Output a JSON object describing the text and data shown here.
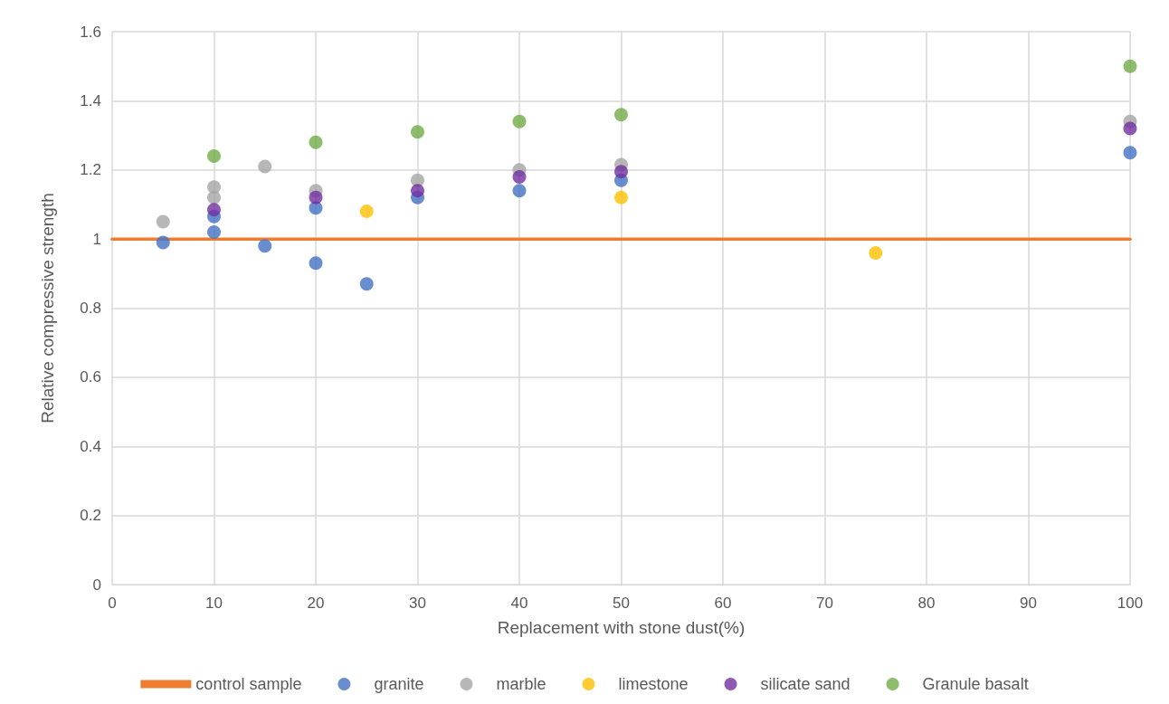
{
  "chart_data": {
    "type": "scatter",
    "xlabel": "Replacement with stone dust(%)",
    "ylabel": "Relative compressive strength",
    "xlim": [
      0,
      100
    ],
    "xticks": [
      0,
      10,
      20,
      30,
      40,
      50,
      60,
      70,
      80,
      90,
      100
    ],
    "ylim": [
      0,
      1.6
    ],
    "yticks": [
      0,
      0.2,
      0.4,
      0.6,
      0.8,
      1,
      1.2,
      1.4,
      1.6
    ],
    "grid": true,
    "legend": "bottom",
    "marker": "circle",
    "series": [
      {
        "name": "control sample",
        "type": "line",
        "marker": "none",
        "line_style": "solid",
        "color": "#ed7d31",
        "x": [
          0,
          100
        ],
        "values": [
          1,
          1
        ]
      },
      {
        "name": "granite",
        "color": "#4472c4",
        "x": [
          5,
          10,
          10,
          15,
          20,
          20,
          25,
          30,
          40,
          50,
          100
        ],
        "values": [
          0.99,
          1.02,
          1.065,
          0.98,
          1.09,
          0.93,
          0.87,
          1.12,
          1.14,
          1.17,
          1.25
        ]
      },
      {
        "name": "marble",
        "color": "#a5a5a5",
        "x": [
          5,
          10,
          10,
          15,
          20,
          30,
          40,
          50,
          100
        ],
        "values": [
          1.05,
          1.15,
          1.12,
          1.21,
          1.14,
          1.17,
          1.2,
          1.215,
          1.34
        ]
      },
      {
        "name": "limestone",
        "color": "#ffc000",
        "x": [
          25,
          50,
          75
        ],
        "values": [
          1.08,
          1.12,
          0.96
        ]
      },
      {
        "name": "silicate sand",
        "color": "#7030a0",
        "x": [
          10,
          20,
          30,
          40,
          50,
          100
        ],
        "values": [
          1.085,
          1.12,
          1.14,
          1.18,
          1.195,
          1.32
        ]
      },
      {
        "name": "Granule basalt",
        "color": "#70ad47",
        "x": [
          10,
          20,
          30,
          40,
          50,
          100
        ],
        "values": [
          1.24,
          1.28,
          1.31,
          1.34,
          1.36,
          1.5
        ]
      }
    ]
  }
}
